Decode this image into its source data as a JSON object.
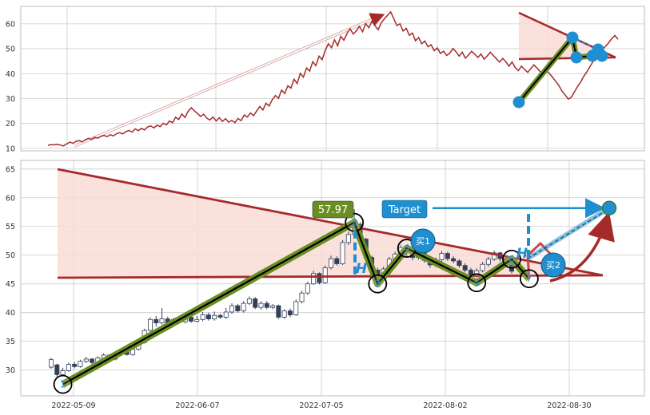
{
  "colors": {
    "panel_bg": "#eaeaf2",
    "plot_bg": "#ffffff",
    "grid": "#cccccc",
    "price_line": "#a52a2a",
    "trend_line": "#a52a2a",
    "triangle_fill": "#f9d9d2",
    "pattern_outer": "#6b8e23",
    "pattern_inner": "#000000",
    "marker_blue": "#1f8fd0",
    "candle_down": "#34405a",
    "candle_up": "#ffffff",
    "label_green": "#6b8e23",
    "target_blue": "#1f8fd0"
  },
  "chart_data": [
    {
      "type": "line",
      "panel": "overview",
      "ylim": [
        9,
        67
      ],
      "yticks": [
        "10",
        "20",
        "30",
        "40",
        "50",
        "60"
      ],
      "grid": true,
      "series": [
        {
          "values": [
            11.2,
            11.5,
            11.4,
            11.6,
            11.3,
            11.0,
            11.8,
            12.5,
            12.0,
            12.8,
            13.1,
            12.6,
            13.5,
            14.0,
            13.6,
            14.4,
            14.1,
            14.8,
            15.2,
            14.7,
            15.5,
            15.0,
            15.9,
            16.3,
            15.8,
            16.7,
            17.2,
            16.5,
            17.8,
            17.1,
            18.0,
            17.4,
            18.6,
            19.0,
            18.2,
            19.3,
            18.7,
            20.1,
            19.4,
            21.0,
            20.3,
            22.5,
            21.6,
            23.8,
            22.4,
            24.9,
            26.3,
            25.1,
            24.0,
            22.8,
            23.7,
            22.1,
            21.4,
            22.6,
            21.0,
            22.3,
            20.8,
            21.9,
            20.5,
            21.2,
            20.3,
            22.0,
            21.1,
            23.4,
            22.6,
            24.2,
            23.1,
            25.0,
            26.8,
            25.4,
            28.1,
            27.0,
            29.5,
            31.2,
            30.1,
            33.4,
            32.0,
            35.1,
            34.2,
            37.8,
            36.0,
            40.1,
            38.6,
            42.3,
            41.0,
            44.8,
            43.2,
            47.0,
            45.6,
            49.3,
            52.0,
            50.4,
            53.6,
            51.2,
            55.0,
            53.4,
            56.1,
            58.0,
            55.9,
            57.2,
            59.0,
            56.8,
            60.1,
            58.4,
            61.0,
            59.2,
            57.6,
            60.5,
            62.0,
            63.4,
            64.8,
            62.1,
            59.3,
            60.0,
            57.1,
            58.2,
            55.4,
            56.3,
            53.2,
            54.5,
            52.0,
            53.1,
            50.8,
            51.6,
            49.2,
            50.3,
            48.1,
            49.0,
            47.3,
            48.2,
            50.1,
            48.8,
            47.0,
            48.6,
            46.2,
            47.5,
            49.0,
            47.8,
            46.5,
            47.9,
            45.8,
            47.1,
            48.6,
            47.2,
            45.9,
            44.6,
            46.1,
            44.8,
            43.0,
            44.7,
            42.5,
            41.2,
            43.0,
            41.7,
            40.5,
            42.0,
            43.5,
            42.2,
            40.8,
            39.6,
            41.3,
            40.0,
            38.5,
            36.9,
            35.2,
            33.0,
            31.5,
            29.8,
            30.5,
            32.7,
            34.8,
            36.6,
            38.9,
            40.7,
            42.8,
            44.9,
            47.0,
            48.2,
            49.6,
            51.0,
            52.4,
            54.1,
            55.3,
            53.8
          ]
        }
      ]
    },
    {
      "type": "candlestick",
      "panel": "main",
      "ylim": [
        25.5,
        66.5
      ],
      "yticks": [
        "30",
        "35",
        "40",
        "45",
        "50",
        "55",
        "60",
        "65"
      ],
      "x_tick_labels": [
        "2022-05-09",
        "2022-06-07",
        "2022-07-05",
        "2022-08-02",
        "2022-08-30"
      ],
      "grid": true,
      "candles": [
        [
          30.5,
          31.8,
          30.2,
          32.1
        ],
        [
          30.9,
          29.2,
          28.8,
          31.1
        ],
        [
          29.2,
          29.9,
          28.9,
          30.4
        ],
        [
          29.9,
          31.0,
          29.7,
          31.3
        ],
        [
          31.0,
          30.6,
          30.3,
          31.4
        ],
        [
          30.6,
          31.5,
          30.4,
          31.8
        ],
        [
          31.5,
          31.9,
          31.2,
          32.3
        ],
        [
          31.9,
          31.3,
          31.0,
          32.1
        ],
        [
          31.3,
          32.1,
          31.1,
          32.4
        ],
        [
          32.1,
          32.6,
          31.8,
          32.9
        ],
        [
          32.6,
          31.9,
          31.6,
          32.8
        ],
        [
          31.9,
          32.8,
          31.7,
          33.1
        ],
        [
          32.8,
          33.2,
          32.5,
          33.6
        ],
        [
          33.2,
          32.7,
          32.5,
          33.5
        ],
        [
          32.7,
          33.6,
          32.5,
          33.9
        ],
        [
          33.6,
          34.8,
          33.4,
          35.1
        ],
        [
          34.8,
          36.9,
          34.6,
          37.2
        ],
        [
          36.9,
          38.8,
          36.7,
          39.2
        ],
        [
          38.8,
          38.2,
          37.6,
          39.4
        ],
        [
          38.2,
          38.9,
          37.9,
          40.8
        ],
        [
          38.9,
          38.0,
          37.6,
          39.3
        ],
        [
          38.0,
          38.8,
          37.7,
          39.1
        ],
        [
          38.8,
          38.4,
          38.1,
          39.0
        ],
        [
          38.4,
          39.2,
          38.1,
          39.6
        ],
        [
          39.2,
          38.5,
          38.2,
          39.5
        ],
        [
          38.5,
          38.8,
          38.3,
          39.4
        ],
        [
          38.8,
          39.6,
          38.5,
          40.1
        ],
        [
          39.6,
          38.9,
          38.6,
          40.0
        ],
        [
          38.9,
          39.5,
          38.6,
          40.2
        ],
        [
          39.5,
          39.2,
          38.9,
          39.8
        ],
        [
          39.2,
          40.1,
          38.9,
          40.8
        ],
        [
          40.1,
          41.2,
          39.8,
          41.6
        ],
        [
          41.2,
          40.3,
          40.0,
          41.5
        ],
        [
          40.3,
          41.6,
          40.0,
          42.0
        ],
        [
          41.6,
          42.4,
          41.3,
          42.8
        ],
        [
          42.4,
          40.9,
          40.6,
          42.7
        ],
        [
          40.9,
          41.6,
          40.5,
          42.0
        ],
        [
          41.6,
          40.9,
          40.6,
          42.0
        ],
        [
          40.9,
          41.2,
          40.6,
          41.5
        ],
        [
          41.2,
          39.2,
          38.9,
          41.4
        ],
        [
          39.2,
          40.3,
          38.9,
          40.6
        ],
        [
          40.3,
          39.6,
          39.2,
          40.7
        ],
        [
          39.6,
          41.9,
          39.4,
          42.3
        ],
        [
          41.9,
          43.4,
          41.6,
          43.8
        ],
        [
          43.4,
          45.0,
          43.1,
          45.4
        ],
        [
          45.0,
          46.8,
          44.8,
          47.3
        ],
        [
          46.8,
          45.2,
          44.9,
          47.0
        ],
        [
          45.2,
          47.8,
          45.0,
          48.2
        ],
        [
          47.8,
          49.4,
          47.5,
          49.9
        ],
        [
          49.4,
          48.5,
          48.2,
          49.8
        ],
        [
          48.5,
          52.2,
          48.3,
          52.6
        ],
        [
          52.2,
          53.6,
          51.8,
          54.1
        ],
        [
          53.6,
          55.4,
          53.2,
          57.97
        ],
        [
          55.4,
          52.8,
          52.5,
          55.8
        ],
        [
          52.8,
          49.6,
          49.2,
          53.0
        ],
        [
          49.6,
          47.4,
          47.0,
          49.9
        ],
        [
          47.4,
          46.0,
          45.6,
          47.8
        ],
        [
          46.0,
          47.6,
          45.7,
          48.0
        ],
        [
          47.6,
          49.3,
          47.3,
          49.7
        ],
        [
          49.3,
          50.2,
          48.9,
          50.6
        ],
        [
          50.2,
          51.3,
          49.9,
          51.8
        ],
        [
          51.3,
          50.4,
          49.8,
          51.7
        ],
        [
          50.4,
          49.6,
          49.1,
          50.8
        ],
        [
          49.6,
          50.4,
          49.2,
          50.8
        ],
        [
          50.4,
          49.1,
          48.7,
          50.7
        ],
        [
          49.1,
          48.3,
          47.8,
          49.5
        ],
        [
          48.3,
          49.2,
          47.9,
          49.6
        ],
        [
          49.2,
          50.3,
          48.8,
          50.7
        ],
        [
          50.3,
          49.4,
          49.0,
          50.6
        ],
        [
          49.4,
          49.0,
          48.6,
          49.8
        ],
        [
          49.0,
          48.2,
          47.8,
          49.3
        ],
        [
          48.2,
          47.4,
          47.0,
          48.6
        ],
        [
          47.4,
          46.5,
          46.1,
          47.8
        ],
        [
          46.5,
          47.3,
          46.1,
          47.7
        ],
        [
          47.3,
          48.4,
          47.0,
          48.8
        ],
        [
          48.4,
          49.3,
          48.0,
          49.7
        ],
        [
          49.3,
          50.4,
          49.0,
          50.8
        ],
        [
          50.4,
          49.4,
          48.9,
          50.6
        ],
        [
          49.4,
          48.3,
          48.0,
          49.7
        ],
        [
          48.3,
          47.2,
          46.8,
          48.6
        ]
      ],
      "pattern_points": [
        {
          "label": "1",
          "x_index": 2,
          "y": 27.5
        },
        {
          "label": "2",
          "x_index": 52,
          "y": 55.7
        },
        {
          "label": "3",
          "x_index": 56,
          "y": 45.0
        },
        {
          "label": "4",
          "x_index": 61,
          "y": 51.2
        },
        {
          "label": "5",
          "x_index": 73,
          "y": 45.2
        },
        {
          "label": "6",
          "x_index": 79,
          "y": 49.3
        },
        {
          "label": "7",
          "x_index": 82,
          "y": 45.9
        }
      ],
      "price_label": "57.97",
      "target_label": "Target",
      "target_value": 58.2,
      "buy_labels": [
        "买1",
        "买2"
      ],
      "h_label": "H"
    }
  ]
}
